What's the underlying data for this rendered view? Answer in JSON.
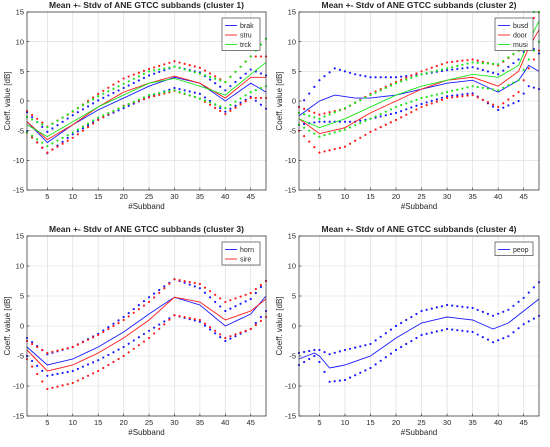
{
  "colors": {
    "blue": "#1a1aff",
    "red": "#ff1a1a",
    "green": "#19e619",
    "grid": "#d9d9d9",
    "axis": "#262626"
  },
  "chart_data": [
    {
      "type": "line",
      "title": "Mean +- Stdv of ANE GTCC subbands (cluster 1)",
      "xlabel": "#Subband",
      "ylabel": "Coeff. value [dB]",
      "xlim": [
        1,
        48
      ],
      "ylim": [
        -15,
        15
      ],
      "xticks": [
        5,
        10,
        15,
        20,
        25,
        30,
        35,
        40,
        45
      ],
      "yticks": [
        -15,
        -10,
        -5,
        0,
        5,
        10,
        15
      ],
      "grid": true,
      "legend_position": "top-right",
      "bands_dotted": "mean +- stdv",
      "series": [
        {
          "name": "brak",
          "color": "blue",
          "x": [
            1,
            5,
            10,
            15,
            20,
            25,
            30,
            35,
            40,
            45,
            48
          ],
          "mean": [
            -3.5,
            -7.0,
            -4.0,
            -1.5,
            0.5,
            2.5,
            4.0,
            3.0,
            0.0,
            3.0,
            1.5
          ],
          "std": [
            1.6,
            1.8,
            1.6,
            1.6,
            1.7,
            1.8,
            1.8,
            1.8,
            1.8,
            2.3,
            2.8
          ]
        },
        {
          "name": "stru",
          "color": "red",
          "x": [
            1,
            5,
            10,
            15,
            20,
            25,
            30,
            35,
            40,
            45,
            48
          ],
          "mean": [
            -3.5,
            -6.5,
            -4.0,
            -1.0,
            1.5,
            3.0,
            4.2,
            3.0,
            0.5,
            4.0,
            4.0
          ],
          "std": [
            1.8,
            2.2,
            2.2,
            2.2,
            2.3,
            2.4,
            2.5,
            2.6,
            2.7,
            3.5,
            3.5
          ]
        },
        {
          "name": "trck",
          "color": "green",
          "x": [
            1,
            5,
            10,
            15,
            20,
            25,
            30,
            35,
            40,
            45,
            48
          ],
          "mean": [
            -4.0,
            -6.0,
            -3.5,
            -1.0,
            1.0,
            3.0,
            3.8,
            2.5,
            1.0,
            4.5,
            6.5
          ],
          "std": [
            1.3,
            1.6,
            1.8,
            1.8,
            1.9,
            2.0,
            2.0,
            2.1,
            2.2,
            3.0,
            4.0
          ]
        }
      ]
    },
    {
      "type": "line",
      "title": "Mean +- Stdv of ANE GTCC subbands (cluster 2)",
      "xlabel": "#Subband",
      "ylabel": "Coeff. value [dB]",
      "xlim": [
        1,
        48
      ],
      "ylim": [
        -15,
        15
      ],
      "xticks": [
        5,
        10,
        15,
        20,
        25,
        30,
        35,
        40,
        45
      ],
      "yticks": [
        -15,
        -10,
        -5,
        0,
        5,
        10,
        15
      ],
      "grid": true,
      "legend_position": "top-right",
      "bands_dotted": "mean +- stdv",
      "series": [
        {
          "name": "busd",
          "color": "blue",
          "x": [
            1,
            5,
            8,
            12,
            15,
            20,
            25,
            30,
            35,
            40,
            44,
            46,
            48
          ],
          "mean": [
            -2.5,
            0.0,
            1.0,
            0.5,
            0.5,
            1.0,
            2.0,
            3.0,
            3.5,
            1.5,
            3.5,
            6.0,
            5.0
          ],
          "std": [
            1.5,
            3.5,
            4.5,
            4.0,
            3.5,
            3.0,
            2.5,
            2.2,
            2.2,
            3.0,
            3.5,
            3.5,
            3.0
          ]
        },
        {
          "name": "door",
          "color": "red",
          "x": [
            1,
            5,
            10,
            15,
            20,
            25,
            30,
            35,
            40,
            44,
            46,
            48
          ],
          "mean": [
            -3.0,
            -5.5,
            -4.5,
            -2.0,
            0.0,
            2.0,
            3.5,
            4.0,
            2.5,
            5.0,
            9.0,
            12.0
          ],
          "std": [
            2.0,
            3.2,
            3.2,
            3.2,
            3.2,
            3.0,
            3.0,
            3.0,
            3.5,
            3.5,
            3.5,
            3.5
          ]
        },
        {
          "name": "musi",
          "color": "green",
          "x": [
            1,
            5,
            10,
            15,
            20,
            25,
            30,
            35,
            40,
            44,
            46,
            48
          ],
          "mean": [
            -3.0,
            -4.5,
            -3.0,
            -1.0,
            1.0,
            2.5,
            3.5,
            4.5,
            4.0,
            6.0,
            10.0,
            13.5
          ],
          "std": [
            1.0,
            1.5,
            1.8,
            2.0,
            2.0,
            2.0,
            2.0,
            2.0,
            2.2,
            2.5,
            3.0,
            3.5
          ]
        }
      ]
    },
    {
      "type": "line",
      "title": "Mean +- Stdv of ANE GTCC subbands (cluster 3)",
      "xlabel": "#Subband",
      "ylabel": "Coeff. value [dB]",
      "xlim": [
        1,
        48
      ],
      "ylim": [
        -15,
        15
      ],
      "xticks": [
        5,
        10,
        15,
        20,
        25,
        30,
        35,
        40,
        45
      ],
      "yticks": [
        -15,
        -10,
        -5,
        0,
        5,
        10,
        15
      ],
      "grid": true,
      "legend_position": "top-right",
      "bands_dotted": "mean +- stdv",
      "series": [
        {
          "name": "horn",
          "color": "blue",
          "x": [
            1,
            5,
            10,
            15,
            20,
            25,
            30,
            35,
            40,
            45,
            48
          ],
          "mean": [
            -3.5,
            -6.5,
            -5.5,
            -3.5,
            -1.0,
            2.0,
            4.8,
            3.5,
            0.0,
            2.0,
            5.0
          ],
          "std": [
            1.5,
            1.8,
            2.0,
            2.2,
            2.5,
            2.8,
            3.0,
            2.8,
            2.5,
            2.5,
            2.5
          ]
        },
        {
          "name": "sire",
          "color": "red",
          "x": [
            1,
            5,
            10,
            15,
            20,
            25,
            30,
            35,
            40,
            45,
            48
          ],
          "mean": [
            -4.0,
            -7.5,
            -6.5,
            -4.5,
            -2.0,
            1.0,
            4.8,
            4.0,
            1.0,
            2.5,
            4.5
          ],
          "std": [
            1.5,
            3.0,
            3.0,
            3.0,
            3.0,
            3.0,
            3.0,
            3.0,
            3.0,
            3.0,
            3.0
          ]
        }
      ]
    },
    {
      "type": "line",
      "title": "Mean +- Stdv of ANE GTCC subbands (cluster 4)",
      "xlabel": "#Subband",
      "ylabel": "Coeff. value [dB]",
      "xlim": [
        1,
        48
      ],
      "ylim": [
        -15,
        15
      ],
      "xticks": [
        5,
        10,
        15,
        20,
        25,
        30,
        35,
        40,
        45
      ],
      "yticks": [
        -15,
        -10,
        -5,
        0,
        5,
        10,
        15
      ],
      "grid": true,
      "legend_position": "top-right",
      "bands_dotted": "mean +- stdv",
      "series": [
        {
          "name": "peop",
          "color": "blue",
          "x": [
            1,
            4,
            5,
            7,
            10,
            15,
            20,
            25,
            30,
            35,
            39,
            42,
            45,
            48
          ],
          "mean": [
            -5.5,
            -4.5,
            -5.0,
            -7.0,
            -6.5,
            -5.0,
            -2.0,
            0.5,
            1.5,
            1.0,
            -0.5,
            0.5,
            2.5,
            4.5
          ],
          "std": [
            1.0,
            0.5,
            1.0,
            2.3,
            2.5,
            2.0,
            2.0,
            2.0,
            2.0,
            2.0,
            2.2,
            2.2,
            2.2,
            2.8
          ]
        }
      ]
    }
  ]
}
